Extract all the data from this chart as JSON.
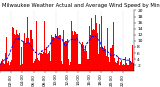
{
  "title": "Milwaukee Weather Actual and Average Wind Speed by Minute mph (Last 24 Hours)",
  "title_fontsize": 3.8,
  "bg_color": "#ffffff",
  "bar_color": "#ff0000",
  "line_color": "#0000ff",
  "line_style": "--",
  "line_width": 0.6,
  "ylim": [
    0,
    20
  ],
  "yticks": [
    2,
    4,
    6,
    8,
    10,
    12,
    14,
    16,
    18,
    20
  ],
  "ytick_fontsize": 3.2,
  "xtick_fontsize": 3.0,
  "n_points": 1440,
  "grid_color": "#bbbbbb",
  "vgrid_positions": [
    120,
    360,
    600,
    840,
    1080,
    1320
  ],
  "seed": 42
}
